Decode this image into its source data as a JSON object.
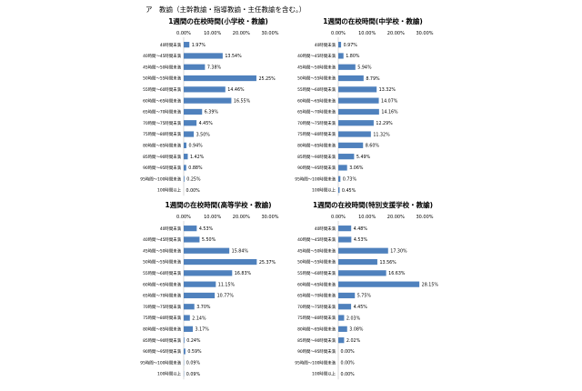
{
  "heading": "ア　教諭（主幹教諭・指導教諭・主任教諭を含む。）",
  "chart_data": [
    {
      "type": "bar",
      "orientation": "horizontal",
      "title": "1週間の在校時間(小学校・教諭)",
      "xlim": [
        0,
        30
      ],
      "ticks": [
        "0.00%",
        "10.00%",
        "20.00%",
        "30.00%"
      ],
      "categories": [
        "40時間未満",
        "40時間～45時間未満",
        "45時間～50時間未満",
        "50時間～55時間未満",
        "55時間～60時間未満",
        "60時間～65時間未満",
        "65時間～70時間未満",
        "70時間～75時間未満",
        "75時間～80時間未満",
        "80時間～85時間未満",
        "85時間～90時間未満",
        "90時間～95時間未満",
        "95時間～100時間未満",
        "100時間以上"
      ],
      "values": [
        1.97,
        13.54,
        7.38,
        25.25,
        14.46,
        16.55,
        6.39,
        4.45,
        3.5,
        0.94,
        1.42,
        0.88,
        0.25,
        0.0
      ],
      "labels": [
        "1.97%",
        "13.54%",
        "7.38%",
        "25.25%",
        "14.46%",
        "16.55%",
        "6.39%",
        "4.45%",
        "3.50%",
        "0.94%",
        "1.42%",
        "0.88%",
        "0.25%",
        "0.00%"
      ]
    },
    {
      "type": "bar",
      "orientation": "horizontal",
      "title": "1週間の在校時間(中学校・教諭)",
      "xlim": [
        0,
        30
      ],
      "ticks": [
        "0.00%",
        "10.00%",
        "20.00%",
        "30.00%"
      ],
      "categories": [
        "40時間未満",
        "40時間～45時間未満",
        "45時間～50時間未満",
        "50時間～55時間未満",
        "55時間～60時間未満",
        "60時間～65時間未満",
        "65時間～70時間未満",
        "70時間～75時間未満",
        "75時間～80時間未満",
        "80時間～85時間未満",
        "85時間～90時間未満",
        "90時間～95時間未満",
        "95時間～100時間未満",
        "100時間以上"
      ],
      "values": [
        0.97,
        1.8,
        5.94,
        8.79,
        13.32,
        14.07,
        14.16,
        12.29,
        11.32,
        8.6,
        5.49,
        3.06,
        0.73,
        0.45
      ],
      "labels": [
        "0.97%",
        "1.80%",
        "5.94%",
        "8.79%",
        "13.32%",
        "14.07%",
        "14.16%",
        "12.29%",
        "11.32%",
        "8.60%",
        "5.49%",
        "3.06%",
        "0.73%",
        "0.45%"
      ]
    },
    {
      "type": "bar",
      "orientation": "horizontal",
      "title": "1週間の在校時間(高等学校・教諭)",
      "xlim": [
        0,
        30
      ],
      "ticks": [
        "0.00%",
        "10.00%",
        "20.00%",
        "30.00%"
      ],
      "categories": [
        "40時間未満",
        "40時間～45時間未満",
        "45時間～50時間未満",
        "50時間～55時間未満",
        "55時間～60時間未満",
        "60時間～65時間未満",
        "65時間～70時間未満",
        "70時間～75時間未満",
        "75時間～80時間未満",
        "80時間～85時間未満",
        "85時間～90時間未満",
        "90時間～95時間未満",
        "95時間～100時間未満",
        "100時間以上"
      ],
      "values": [
        4.53,
        5.5,
        15.84,
        25.37,
        16.83,
        11.15,
        10.77,
        3.7,
        2.14,
        3.17,
        0.24,
        0.59,
        0.09,
        0.09
      ],
      "labels": [
        "4.53%",
        "5.50%",
        "15.84%",
        "25.37%",
        "16.83%",
        "11.15%",
        "10.77%",
        "3.70%",
        "2.14%",
        "3.17%",
        "0.24%",
        "0.59%",
        "0.09%",
        "0.09%"
      ]
    },
    {
      "type": "bar",
      "orientation": "horizontal",
      "title": "1週間の在校時間(特別支援学校・教諭)",
      "xlim": [
        0,
        30
      ],
      "ticks": [
        "0.00%",
        "10.00%",
        "20.00%",
        "30.00%"
      ],
      "categories": [
        "40時間未満",
        "40時間～45時間未満",
        "45時間～50時間未満",
        "50時間～55時間未満",
        "55時間～60時間未満",
        "60時間～65時間未満",
        "65時間～70時間未満",
        "70時間～75時間未満",
        "75時間～80時間未満",
        "80時間～85時間未満",
        "85時間～90時間未満",
        "90時間～95時間未満",
        "95時間～100時間未満",
        "100時間以上"
      ],
      "values": [
        4.48,
        4.53,
        17.3,
        13.56,
        16.63,
        28.15,
        5.75,
        4.45,
        2.03,
        3.08,
        2.02,
        0.0,
        0.0,
        0.0
      ],
      "labels": [
        "4.48%",
        "4.53%",
        "17.30%",
        "13.56%",
        "16.63%",
        "28.15%",
        "5.75%",
        "4.45%",
        "2.03%",
        "3.08%",
        "2.02%",
        "0.00%",
        "0.00%",
        "0.00%"
      ]
    }
  ]
}
